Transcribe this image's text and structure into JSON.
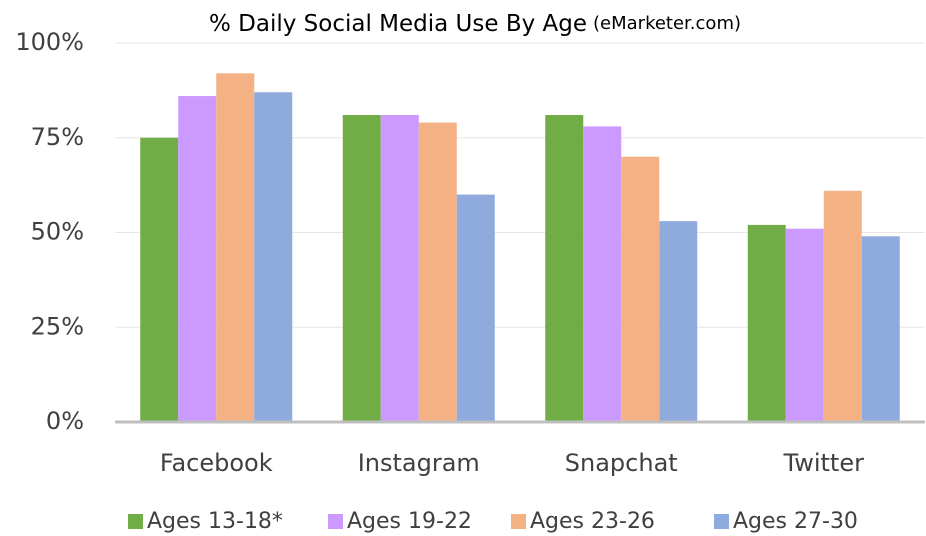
{
  "chart_data": {
    "type": "bar",
    "title": "% Daily Social Media Use By Age",
    "subtitle": "(eMarketer.com)",
    "categories": [
      "Facebook",
      "Instagram",
      "Snapchat",
      "Twitter"
    ],
    "series": [
      {
        "name": "Ages 13-18*",
        "color": "#70ad47",
        "values": [
          75,
          81,
          81,
          52
        ]
      },
      {
        "name": "Ages 19-22",
        "color": "#cc99ff",
        "values": [
          86,
          81,
          78,
          51
        ]
      },
      {
        "name": "Ages 23-26",
        "color": "#f4b183",
        "values": [
          92,
          79,
          70,
          61
        ]
      },
      {
        "name": "Ages 27-30",
        "color": "#8faadc",
        "values": [
          87,
          60,
          53,
          49
        ]
      }
    ],
    "ylim": [
      0,
      100
    ],
    "yticks": [
      {
        "value": 0,
        "label": "0%"
      },
      {
        "value": 25,
        "label": "25%"
      },
      {
        "value": 50,
        "label": "50%"
      },
      {
        "value": 75,
        "label": "75%"
      },
      {
        "value": 100,
        "label": "100%"
      }
    ],
    "grid": true,
    "legend": "bottom"
  }
}
